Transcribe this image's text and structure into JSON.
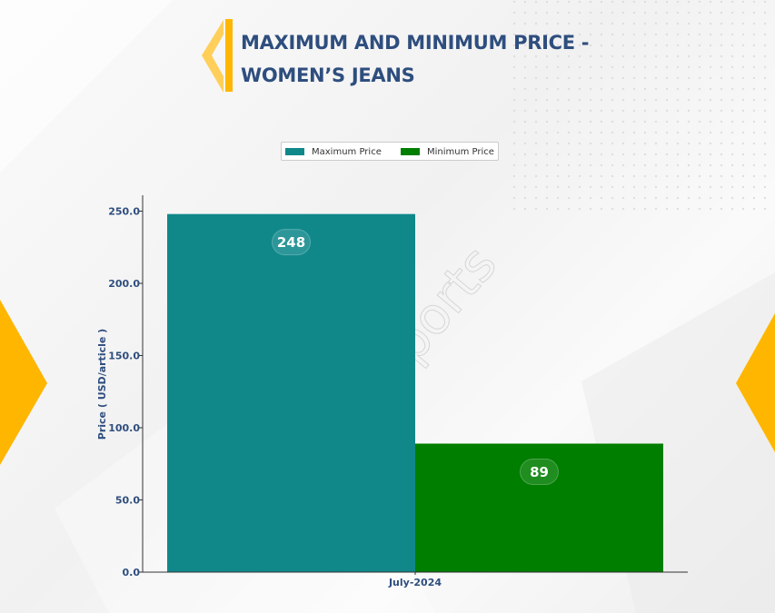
{
  "title": "MAXIMUM AND MINIMUM PRICE - WOMEN’S JEANS",
  "watermark": "DNJ Reports",
  "colors": {
    "title": "#2E4E7E",
    "accent": "#FFB600",
    "maximum": "#10888A",
    "minimum": "#007E00",
    "axis_text": "#2E4E7E"
  },
  "legend": {
    "position": "top-center",
    "items": [
      {
        "label": "Maximum Price",
        "color": "#10888A"
      },
      {
        "label": "Minimum Price",
        "color": "#007E00"
      }
    ]
  },
  "chart_data": {
    "type": "bar",
    "title": "MAXIMUM AND MINIMUM PRICE - WOMEN’S JEANS",
    "categories": [
      "July-2024"
    ],
    "series": [
      {
        "name": "Maximum Price",
        "values": [
          248
        ],
        "color": "#10888A",
        "label": "248"
      },
      {
        "name": "Minimum Price",
        "values": [
          89
        ],
        "color": "#007E00",
        "label": "89"
      }
    ],
    "xlabel": "",
    "ylabel": "Price ( USD/article )",
    "ylim": [
      0,
      260
    ],
    "yticks": [
      0,
      50,
      100,
      150,
      200,
      250
    ],
    "ytick_labels": [
      "0.0",
      "50.0",
      "100.0",
      "150.0",
      "200.0",
      "250.0"
    ],
    "grid": false,
    "legend": "top-center"
  }
}
